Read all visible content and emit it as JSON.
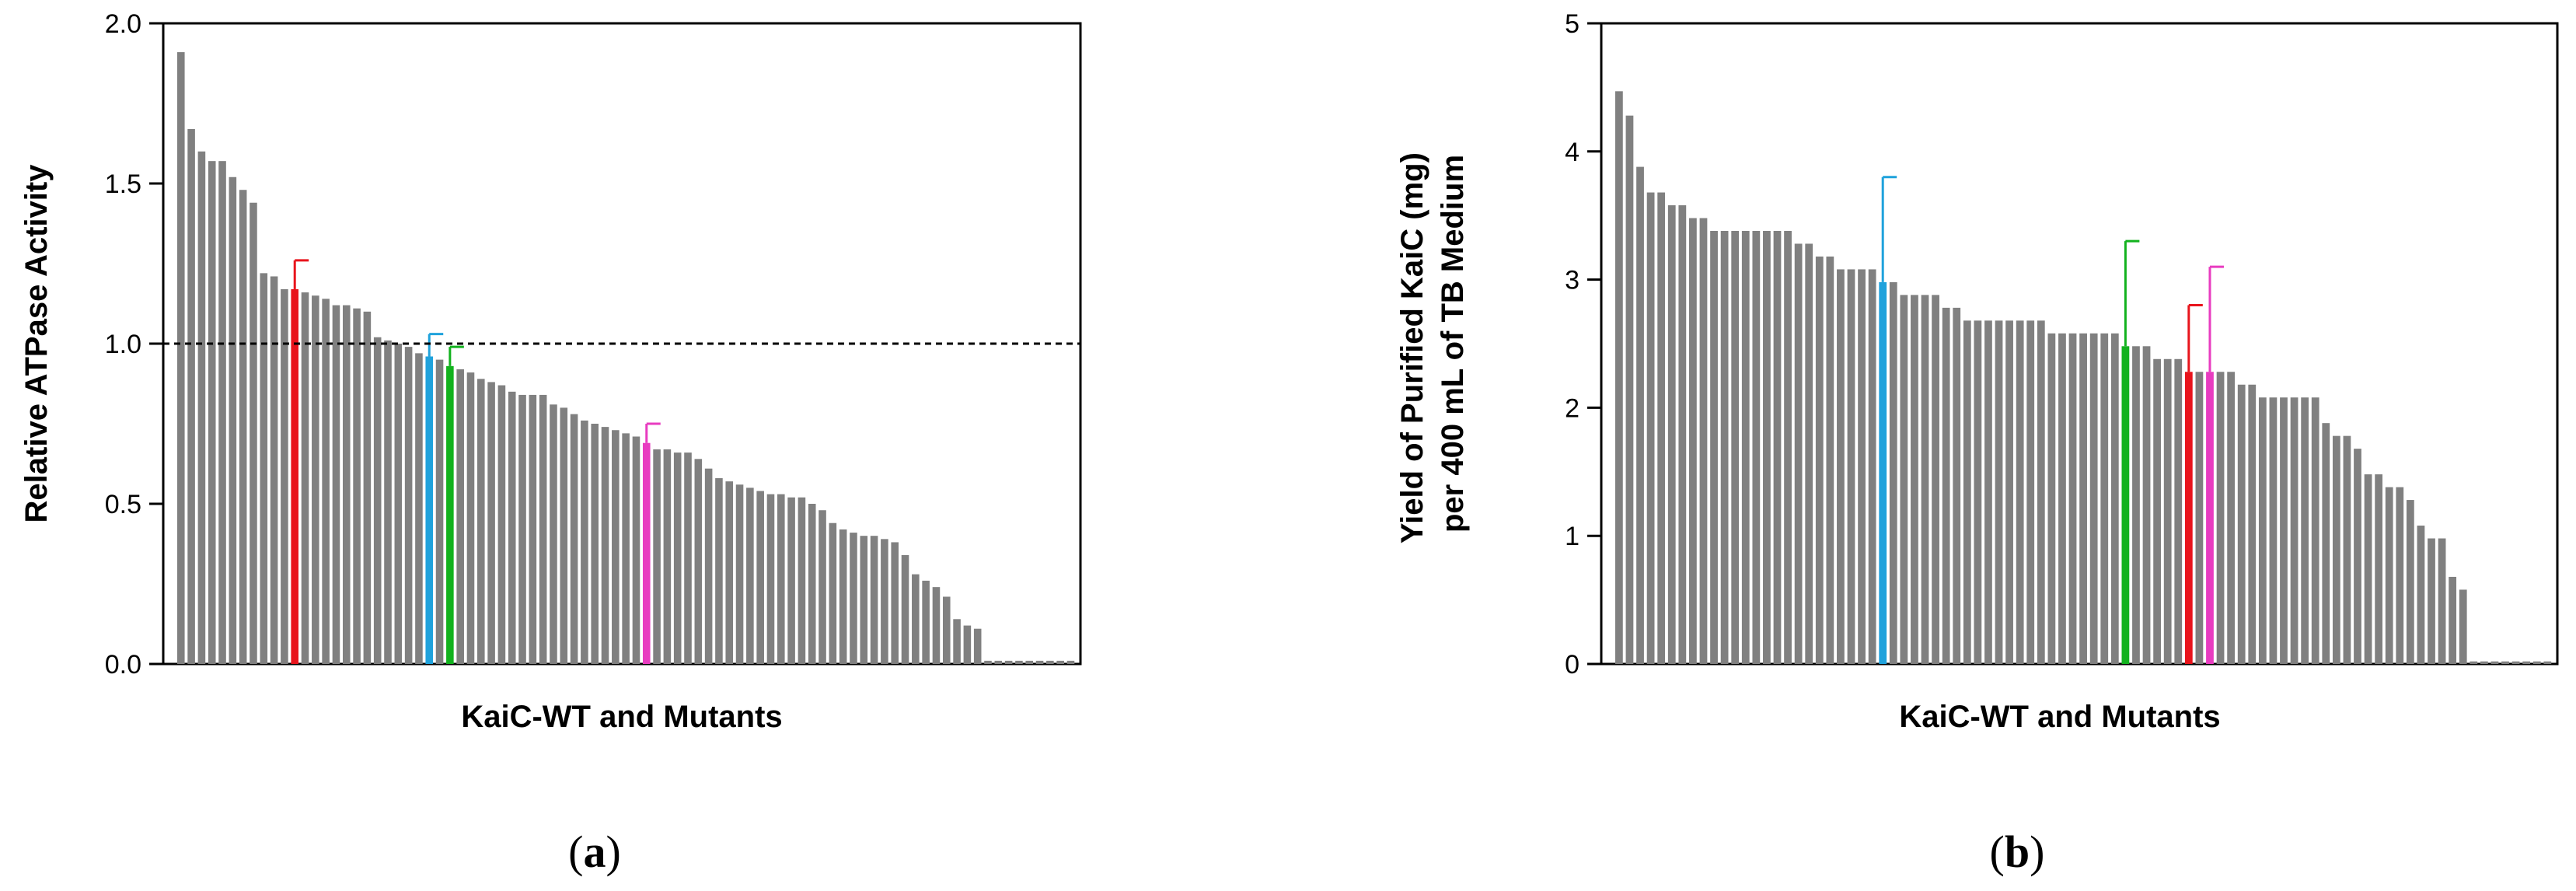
{
  "chart_data": [
    {
      "panel": "(a)",
      "panel_letter": "a",
      "type": "bar",
      "xlabel": "KaiC-WT and Mutants",
      "ylabel": "Relative ATPase Activity",
      "ylim": [
        0,
        2.0
      ],
      "yticks": [
        "0.0",
        "0.5",
        "1.0",
        "1.5",
        "2.0"
      ],
      "ytick_values": [
        0,
        0.5,
        1.0,
        1.5,
        2.0
      ],
      "reference_line": 1.0,
      "grid": false,
      "default_bar_color": "#808080",
      "values": [
        1.91,
        1.67,
        1.6,
        1.57,
        1.57,
        1.52,
        1.48,
        1.44,
        1.22,
        1.21,
        1.17,
        1.17,
        1.16,
        1.15,
        1.14,
        1.12,
        1.12,
        1.11,
        1.1,
        1.02,
        1.01,
        1.0,
        0.99,
        0.97,
        0.96,
        0.95,
        0.93,
        0.92,
        0.91,
        0.89,
        0.88,
        0.87,
        0.85,
        0.84,
        0.84,
        0.84,
        0.81,
        0.8,
        0.78,
        0.76,
        0.75,
        0.74,
        0.73,
        0.72,
        0.71,
        0.69,
        0.67,
        0.67,
        0.66,
        0.66,
        0.64,
        0.61,
        0.58,
        0.57,
        0.56,
        0.55,
        0.54,
        0.53,
        0.53,
        0.52,
        0.52,
        0.5,
        0.48,
        0.44,
        0.42,
        0.41,
        0.4,
        0.4,
        0.39,
        0.38,
        0.34,
        0.28,
        0.26,
        0.24,
        0.21,
        0.14,
        0.12,
        0.11,
        0.01,
        0.01,
        0.01,
        0.01,
        0.01,
        0.01,
        0.01,
        0.01,
        0.01
      ],
      "highlights": [
        {
          "index": 11,
          "color": "#e8141c",
          "error": 0.09
        },
        {
          "index": 24,
          "color": "#1fa2dc",
          "error": 0.07
        },
        {
          "index": 26,
          "color": "#12b21e",
          "error": 0.06
        },
        {
          "index": 45,
          "color": "#e83cc0",
          "error": 0.06
        }
      ]
    },
    {
      "panel": "(b)",
      "panel_letter": "b",
      "type": "bar",
      "xlabel": "KaiC-WT and Mutants",
      "ylabel_lines": [
        "Yield of Purified KaiC (mg)",
        "per 400 mL of TB Medium"
      ],
      "ylim": [
        0,
        5
      ],
      "yticks": [
        "0",
        "1",
        "2",
        "3",
        "4",
        "5"
      ],
      "ytick_values": [
        0,
        1,
        2,
        3,
        4,
        5
      ],
      "grid": false,
      "default_bar_color": "#808080",
      "values": [
        4.47,
        4.28,
        3.88,
        3.68,
        3.68,
        3.58,
        3.58,
        3.48,
        3.48,
        3.38,
        3.38,
        3.38,
        3.38,
        3.38,
        3.38,
        3.38,
        3.38,
        3.28,
        3.28,
        3.18,
        3.18,
        3.08,
        3.08,
        3.08,
        3.08,
        2.98,
        2.98,
        2.88,
        2.88,
        2.88,
        2.88,
        2.78,
        2.78,
        2.68,
        2.68,
        2.68,
        2.68,
        2.68,
        2.68,
        2.68,
        2.68,
        2.58,
        2.58,
        2.58,
        2.58,
        2.58,
        2.58,
        2.58,
        2.48,
        2.48,
        2.48,
        2.38,
        2.38,
        2.38,
        2.28,
        2.28,
        2.28,
        2.28,
        2.28,
        2.18,
        2.18,
        2.08,
        2.08,
        2.08,
        2.08,
        2.08,
        2.08,
        1.88,
        1.78,
        1.78,
        1.68,
        1.48,
        1.48,
        1.38,
        1.38,
        1.28,
        1.08,
        0.98,
        0.98,
        0.68,
        0.58,
        0.02,
        0.02,
        0.02,
        0.02,
        0.02,
        0.02,
        0.02,
        0.02
      ],
      "highlights": [
        {
          "index": 25,
          "color": "#1fa2dc",
          "error": 0.82
        },
        {
          "index": 48,
          "color": "#12b21e",
          "error": 0.82
        },
        {
          "index": 54,
          "color": "#e8141c",
          "error": 0.52
        },
        {
          "index": 56,
          "color": "#e83cc0",
          "error": 0.82
        }
      ]
    }
  ]
}
